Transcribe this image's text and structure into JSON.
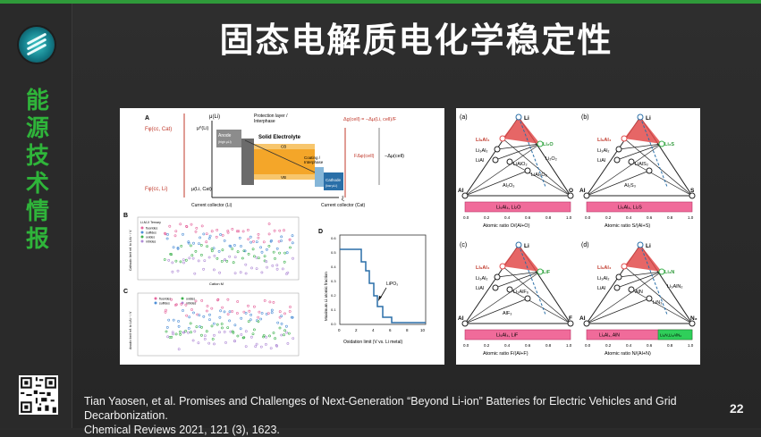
{
  "sidebar": {
    "vertical_label": [
      "能",
      "源",
      "技",
      "术",
      "情",
      "报"
    ]
  },
  "slide": {
    "title": "固态电解质电化学稳定性",
    "page_number": "22",
    "citation_line1": "Tian Yaosen, et al. Promises and Challenges of Next-Generation “Beyond Li-ion” Batteries for Electric Vehicles and Grid Decarbonization.",
    "citation_line2": "Chemical Reviews 2021, 121 (3), 1623."
  },
  "figure_left": {
    "panelA": {
      "label": "A",
      "mu_li": "μ(Li)",
      "mu_li_anode": "μ⁰(Li)",
      "protection": "Protection layer /",
      "interphase": "Interphase",
      "anode": "Anode",
      "anode_sub": "(high μLi)",
      "solid_electrolyte": "Solid Electrolyte",
      "cb": "CB",
      "vb": "VB",
      "coating": "Coating /",
      "coating_interphase": "Interphase",
      "cathode": "Cathode",
      "cathode_sub": "(low μLi)",
      "f_phi_cc": "Fφ(cc, Cat)",
      "f_phi_li": "Fφ(cc, Li)",
      "mu_li_cat": "μ(Li, Cat)",
      "dg_cell": "Δg(cell) = −Δμ(Li, cell)/F",
      "f_dphi": "FΔφ(cell)",
      "neg_dmu": "−Δμ(cell)",
      "cc_li": "Current collector (Li)",
      "cc_cat": "Current collector (Cat)",
      "xi": "ξ"
    },
    "panelB": {
      "label": "B",
      "legend_title": "Li-M-X Ternary",
      "legend": [
        "fluorides",
        "sulfides",
        "oxides",
        "nitrides"
      ],
      "ylabel": "Cathodic limit ref. to Li/Li⁺ / V",
      "xlabel": "Cation M"
    },
    "panelC": {
      "label": "C",
      "legend": [
        "fluorides",
        "sulfides",
        "oxides",
        "nitrides"
      ],
      "ylabel": "Anodic limit ref. to Li/Li⁺ / V"
    },
    "panelD": {
      "label": "D",
      "annotation": "LiPO₃",
      "ylabel": "Maximum Li atomic fraction",
      "xlabel": "Oxidation limit (V vs. Li metal)",
      "x_ticks": [
        "0",
        "2",
        "4",
        "6",
        "8",
        "10"
      ],
      "y_ticks": [
        "0.0",
        "0.1",
        "0.2",
        "0.3",
        "0.4",
        "0.5",
        "0.6"
      ]
    }
  },
  "figure_right": {
    "panels": [
      {
        "tag": "(a)",
        "top": "Li",
        "left_ax": "Al",
        "right_ax": "O",
        "rl": "Li₉Al₄",
        "l2": "Li₃Al₂",
        "l3": "LiAl",
        "p1": "Li₂O",
        "p2": "Li₂O₂",
        "p3": "LiAlO₂",
        "p4": "LiAl₅O₈",
        "p5": "Al₂O₃",
        "bar": "Li₉Al₄, Li₂O",
        "xlabel": "Atomic ratio O/(Al+O)"
      },
      {
        "tag": "(b)",
        "top": "Li",
        "left_ax": "Al",
        "right_ax": "S",
        "rl": "Li₉Al₄",
        "l2": "Li₃Al₂",
        "l3": "LiAl",
        "p1": "Li₂S",
        "p3": "LiAlS₂",
        "p5": "Al₂S₃",
        "bar": "Li₉Al₄, Li₂S",
        "xlabel": "Atomic ratio S/(Al+S)"
      },
      {
        "tag": "(c)",
        "top": "Li",
        "left_ax": "Al",
        "right_ax": "F",
        "rl": "Li₉Al₄",
        "l2": "Li₃Al₂",
        "l3": "LiAl",
        "p1": "LiF",
        "p3": "Li₃AlF₆",
        "p5": "AlF₃",
        "bar": "Li₉Al₄, LiF",
        "xlabel": "Atomic ratio F/(Al+F)"
      },
      {
        "tag": "(d)",
        "top": "Li",
        "left_ax": "Al",
        "right_ax": "N₂",
        "rl": "Li₉Al₄",
        "l2": "Li₃Al₂",
        "l3": "LiAl",
        "p1": "Li₃N",
        "p2": "Li₃AlN₂",
        "p3": "AlN",
        "p4": "LiN₃",
        "bar": "Li₉Al₄, AlN",
        "bar2": "Li₃N,Li₃AlN₂",
        "xlabel": "Atomic ratio N/(Al+N)"
      }
    ],
    "x_ticks": [
      "0.0",
      "0.2",
      "0.4",
      "0.6",
      "0.8",
      "1.0"
    ]
  }
}
